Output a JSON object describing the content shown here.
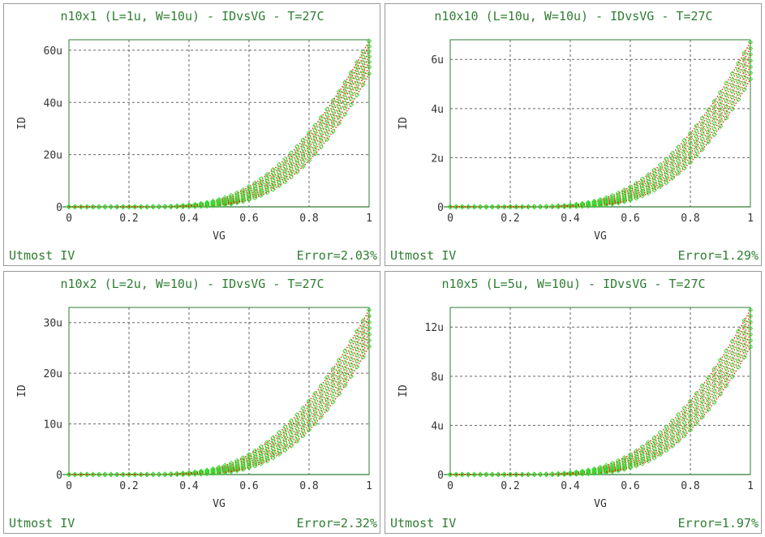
{
  "colors": {
    "text": "#2e7d32",
    "simulated": "#33dd33",
    "measured": "#ff1a00",
    "grid": "#666666",
    "border": "#9a9a9a"
  },
  "panels": [
    {
      "id": "p1",
      "title": "n10x1 (L=1u, W=10u) - IDvsVG - T=27C",
      "tool": "Utmost IV",
      "error": "Error=2.03%"
    },
    {
      "id": "p2",
      "title": "n10x10 (L=10u, W=10u) - IDvsVG - T=27C",
      "tool": "Utmost IV",
      "error": "Error=1.29%"
    },
    {
      "id": "p3",
      "title": "n10x2 (L=2u, W=10u) - IDvsVG - T=27C",
      "tool": "Utmost IV",
      "error": "Error=2.32%"
    },
    {
      "id": "p4",
      "title": "n10x5 (L=5u, W=10u) - IDvsVG - T=27C",
      "tool": "Utmost IV",
      "error": "Error=1.97%"
    }
  ],
  "chart_data": [
    {
      "type": "line",
      "title": "n10x1 (L=1u, W=10u) - IDvsVG - T=27C",
      "xlabel": "VG",
      "ylabel": "ID",
      "x_ticks": [
        "0",
        "0.2",
        "0.4",
        "0.6",
        "0.8",
        "1"
      ],
      "y_ticks": [
        "0",
        "20u",
        "40u",
        "60u"
      ],
      "xlim": [
        0,
        1
      ],
      "ylim_uA": [
        0,
        64
      ],
      "grid": true,
      "vth": [
        0.4,
        0.42,
        0.44,
        0.46,
        0.48,
        0.5,
        0.52
      ],
      "series_ymax_uA": [
        63.5,
        61.5,
        59.5,
        57.5,
        55.5,
        53.5,
        51.0
      ]
    },
    {
      "type": "line",
      "title": "n10x10 (L=10u, W=10u) - IDvsVG - T=27C",
      "xlabel": "VG",
      "ylabel": "ID",
      "x_ticks": [
        "0",
        "0.2",
        "0.4",
        "0.6",
        "0.8",
        "1"
      ],
      "y_ticks": [
        "0",
        "2u",
        "4u",
        "6u"
      ],
      "xlim": [
        0,
        1
      ],
      "ylim_uA": [
        0,
        6.8
      ],
      "grid": true,
      "vth": [
        0.4,
        0.42,
        0.44,
        0.46,
        0.48,
        0.5,
        0.52
      ],
      "series_ymax_uA": [
        6.7,
        6.45,
        6.2,
        5.95,
        5.7,
        5.45,
        5.2
      ]
    },
    {
      "type": "line",
      "title": "n10x2 (L=2u, W=10u) - IDvsVG - T=27C",
      "xlabel": "VG",
      "ylabel": "ID",
      "x_ticks": [
        "0",
        "0.2",
        "0.4",
        "0.6",
        "0.8",
        "1"
      ],
      "y_ticks": [
        "0",
        "10u",
        "20u",
        "30u"
      ],
      "xlim": [
        0,
        1
      ],
      "ylim_uA": [
        0,
        33
      ],
      "grid": true,
      "vth": [
        0.4,
        0.42,
        0.44,
        0.46,
        0.48,
        0.5,
        0.52
      ],
      "series_ymax_uA": [
        32.5,
        31.3,
        30.1,
        28.9,
        27.7,
        26.5,
        25.3
      ]
    },
    {
      "type": "line",
      "title": "n10x5 (L=5u, W=10u) - IDvsVG - T=27C",
      "xlabel": "VG",
      "ylabel": "ID",
      "x_ticks": [
        "0",
        "0.2",
        "0.4",
        "0.6",
        "0.8",
        "1"
      ],
      "y_ticks": [
        "0",
        "4u",
        "8u",
        "12u"
      ],
      "xlim": [
        0,
        1
      ],
      "ylim_uA": [
        0,
        13.6
      ],
      "grid": true,
      "vth": [
        0.4,
        0.42,
        0.44,
        0.46,
        0.48,
        0.5,
        0.52
      ],
      "series_ymax_uA": [
        13.4,
        12.9,
        12.4,
        11.9,
        11.4,
        10.9,
        10.4
      ]
    }
  ]
}
